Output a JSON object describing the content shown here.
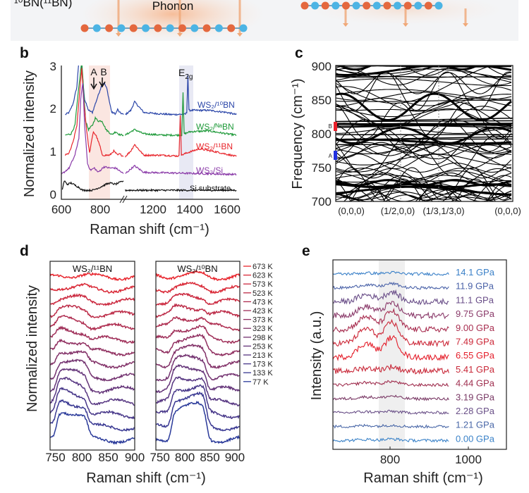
{
  "banner": {
    "isotope_label": "¹⁰BN(¹¹BN)",
    "phonon_label": "Phonon",
    "colors": {
      "boron": "#e4683e",
      "nitrogen": "#4cb4e4",
      "arrow": "#f0a878",
      "background": "#f3f4f6"
    }
  },
  "panels": {
    "b": "b",
    "c": "c",
    "d": "d",
    "e": "e"
  },
  "chart_data": [
    {
      "panel": "b",
      "type": "line",
      "xlabel": "Raman shift (cm⁻¹)",
      "ylabel": "Normalized intensity",
      "xticks": [
        "600",
        "800",
        "1200",
        "1400",
        "1600"
      ],
      "yticks": [
        "0",
        "1",
        "2",
        "3"
      ],
      "ylim": [
        0,
        3
      ],
      "x_break": [
        920,
        1050
      ],
      "annotations": {
        "A": "A",
        "B": "B",
        "E2g_base": "E",
        "E2g_sub": "2g"
      },
      "shaded_ranges": [
        [
          745,
          850
        ],
        [
          1340,
          1415
        ]
      ],
      "series": [
        {
          "name": "WS₂/¹⁰BN",
          "color": "#2a45a8",
          "points": [
            [
              620,
              1.85
            ],
            [
              640,
              1.9
            ],
            [
              660,
              2.1
            ],
            [
              680,
              2.5
            ],
            [
              690,
              3.1
            ],
            [
              700,
              3.1
            ],
            [
              710,
              2.7
            ],
            [
              720,
              2.2
            ],
            [
              740,
              1.95
            ],
            [
              760,
              1.9
            ],
            [
              775,
              2.1
            ],
            [
              790,
              2.3
            ],
            [
              805,
              2.5
            ],
            [
              820,
              2.6
            ],
            [
              835,
              2.45
            ],
            [
              850,
              2.1
            ],
            [
              860,
              1.9
            ],
            [
              880,
              1.87
            ],
            [
              890,
              1.97
            ],
            [
              900,
              1.9
            ],
            [
              920,
              1.85
            ],
            null,
            [
              1050,
              1.85
            ],
            [
              1080,
              1.95
            ],
            [
              1100,
              2.15
            ],
            [
              1120,
              2.05
            ],
            [
              1150,
              1.9
            ],
            [
              1200,
              1.88
            ],
            [
              1300,
              1.85
            ],
            [
              1375,
              1.86
            ],
            [
              1382,
              1.9
            ],
            [
              1388,
              2.8
            ],
            [
              1394,
              1.95
            ],
            [
              1420,
              1.95
            ],
            [
              1500,
              1.95
            ],
            [
              1600,
              1.9
            ],
            [
              1650,
              1.85
            ]
          ]
        },
        {
          "name": "WS₂/ᴺᵃBN",
          "color": "#1f9a3a",
          "points": [
            [
              620,
              1.37
            ],
            [
              650,
              1.4
            ],
            [
              670,
              1.6
            ],
            [
              690,
              2.5
            ],
            [
              705,
              3.1
            ],
            [
              715,
              2.4
            ],
            [
              725,
              1.7
            ],
            [
              740,
              1.5
            ],
            [
              760,
              1.6
            ],
            [
              775,
              1.77
            ],
            [
              790,
              1.7
            ],
            [
              810,
              1.7
            ],
            [
              830,
              1.5
            ],
            [
              860,
              1.38
            ],
            [
              880,
              1.45
            ],
            [
              900,
              1.38
            ],
            [
              920,
              1.37
            ],
            null,
            [
              1050,
              1.37
            ],
            [
              1100,
              1.5
            ],
            [
              1150,
              1.4
            ],
            [
              1250,
              1.37
            ],
            [
              1355,
              1.37
            ],
            [
              1362,
              2.35
            ],
            [
              1368,
              1.4
            ],
            [
              1400,
              1.45
            ],
            [
              1500,
              1.47
            ],
            [
              1600,
              1.4
            ],
            [
              1650,
              1.37
            ]
          ]
        },
        {
          "name": "WS₂/¹¹BN",
          "color": "#e8262c",
          "points": [
            [
              620,
              0.9
            ],
            [
              640,
              0.95
            ],
            [
              660,
              1.2
            ],
            [
              680,
              1.6
            ],
            [
              695,
              2.4
            ],
            [
              705,
              2.95
            ],
            [
              715,
              2.2
            ],
            [
              730,
              1.5
            ],
            [
              745,
              0.95
            ],
            [
              755,
              1.2
            ],
            [
              765,
              1.45
            ],
            [
              780,
              1.35
            ],
            [
              800,
              1.1
            ],
            [
              810,
              0.9
            ],
            [
              850,
              0.9
            ],
            [
              870,
              1.0
            ],
            [
              890,
              0.9
            ],
            [
              900,
              0.93
            ],
            [
              920,
              0.87
            ],
            null,
            [
              1050,
              0.87
            ],
            [
              1080,
              1.0
            ],
            [
              1100,
              1.15
            ],
            [
              1120,
              1.05
            ],
            [
              1150,
              0.9
            ],
            [
              1250,
              0.9
            ],
            [
              1340,
              0.88
            ],
            [
              1347,
              1.85
            ],
            [
              1353,
              0.9
            ],
            [
              1380,
              0.95
            ],
            [
              1450,
              1.05
            ],
            [
              1550,
              0.97
            ],
            [
              1650,
              0.87
            ]
          ]
        },
        {
          "name": "WS₂/Si",
          "color": "#8a3aa8",
          "points": [
            [
              600,
              0.45
            ],
            [
              640,
              0.6
            ],
            [
              670,
              0.9
            ],
            [
              690,
              1.3
            ],
            [
              700,
              2.2
            ],
            [
              710,
              2.6
            ],
            [
              720,
              1.6
            ],
            [
              735,
              0.7
            ],
            [
              750,
              0.55
            ],
            [
              770,
              0.6
            ],
            [
              790,
              0.5
            ],
            [
              820,
              0.63
            ],
            [
              850,
              0.6
            ],
            [
              880,
              0.6
            ],
            [
              920,
              0.47
            ],
            null,
            [
              1050,
              0.47
            ],
            [
              1100,
              0.65
            ],
            [
              1150,
              0.5
            ],
            [
              1650,
              0.45
            ]
          ]
        },
        {
          "name": "Si substrate",
          "color": "#111111",
          "points": [
            [
              605,
              0.1
            ],
            [
              615,
              0.3
            ],
            [
              630,
              0.22
            ],
            [
              650,
              0.25
            ],
            [
              670,
              0.2
            ],
            [
              690,
              0.15
            ],
            [
              710,
              0.08
            ],
            [
              760,
              0.08
            ],
            [
              800,
              0.15
            ],
            [
              830,
              0.22
            ],
            [
              850,
              0.25
            ],
            [
              880,
              0.22
            ],
            [
              920,
              0.3
            ],
            null,
            [
              1050,
              0.08
            ],
            [
              1650,
              0.08
            ]
          ]
        }
      ]
    },
    {
      "panel": "c",
      "type": "line",
      "ylabel": "Frequency (cm⁻¹)",
      "ylim": [
        700,
        900
      ],
      "yticks": [
        "700",
        "750",
        "800",
        "850",
        "900"
      ],
      "xticks": [
        "(0,0,0)",
        "(1/2,0,0)",
        "(1/3,1/3,0)",
        "(0,0,0)"
      ],
      "markers": [
        {
          "label": "B",
          "range": [
            805,
            818
          ],
          "color": "#e8202a"
        },
        {
          "label": "A",
          "range": [
            762,
            775
          ],
          "color": "#2030e0"
        }
      ]
    },
    {
      "panel": "d",
      "type": "line",
      "ylabel": "Normalized intensity",
      "xlabel": "Raman shift (cm⁻¹)",
      "subplots": [
        {
          "title": "WS₂/¹¹BN",
          "xlim": [
            740,
            900
          ],
          "xticks": [
            "750",
            "800",
            "850",
            "900"
          ]
        },
        {
          "title": "WS₂/¹⁰BN",
          "xlim": [
            742,
            910
          ],
          "xticks": [
            "750",
            "800",
            "850",
            "900"
          ]
        }
      ],
      "legend": [
        "673 K",
        "623 K",
        "573 K",
        "523 K",
        "473 K",
        "423 K",
        "373 K",
        "323 K",
        "298 K",
        "253 K",
        "213 K",
        "173 K",
        "133 K",
        "77 K"
      ],
      "legend_position": "right",
      "color_high": "#e8262e",
      "color_low": "#2a3a9a"
    },
    {
      "panel": "e",
      "type": "line",
      "ylabel": "Intensity (a.u.)",
      "xlabel": "Raman shift (cm⁻¹)",
      "xlim": [
        655,
        1097
      ],
      "xticks": [
        "800",
        "1000"
      ],
      "shaded_range": [
        770,
        835
      ],
      "series": [
        {
          "name": "14.1 GPa",
          "color": "#3a80c8"
        },
        {
          "name": "11.9 GPa",
          "color": "#4a62a8"
        },
        {
          "name": "11.1 GPa",
          "color": "#6a4e88"
        },
        {
          "name": "9.75 GPa",
          "color": "#8a3a6a"
        },
        {
          "name": "9.00 GPa",
          "color": "#a82e50"
        },
        {
          "name": "7.49 GPa",
          "color": "#cc2838"
        },
        {
          "name": "6.55 GPa",
          "color": "#e41e2a"
        },
        {
          "name": "5.41 GPa",
          "color": "#c82838"
        },
        {
          "name": "4.44 GPa",
          "color": "#a03050"
        },
        {
          "name": "3.19 GPa",
          "color": "#7a3a66"
        },
        {
          "name": "2.28 GPa",
          "color": "#6a5088"
        },
        {
          "name": "1.21 GPa",
          "color": "#4a68a8"
        },
        {
          "name": "0.00 GPa",
          "color": "#3a82c8"
        }
      ]
    }
  ]
}
